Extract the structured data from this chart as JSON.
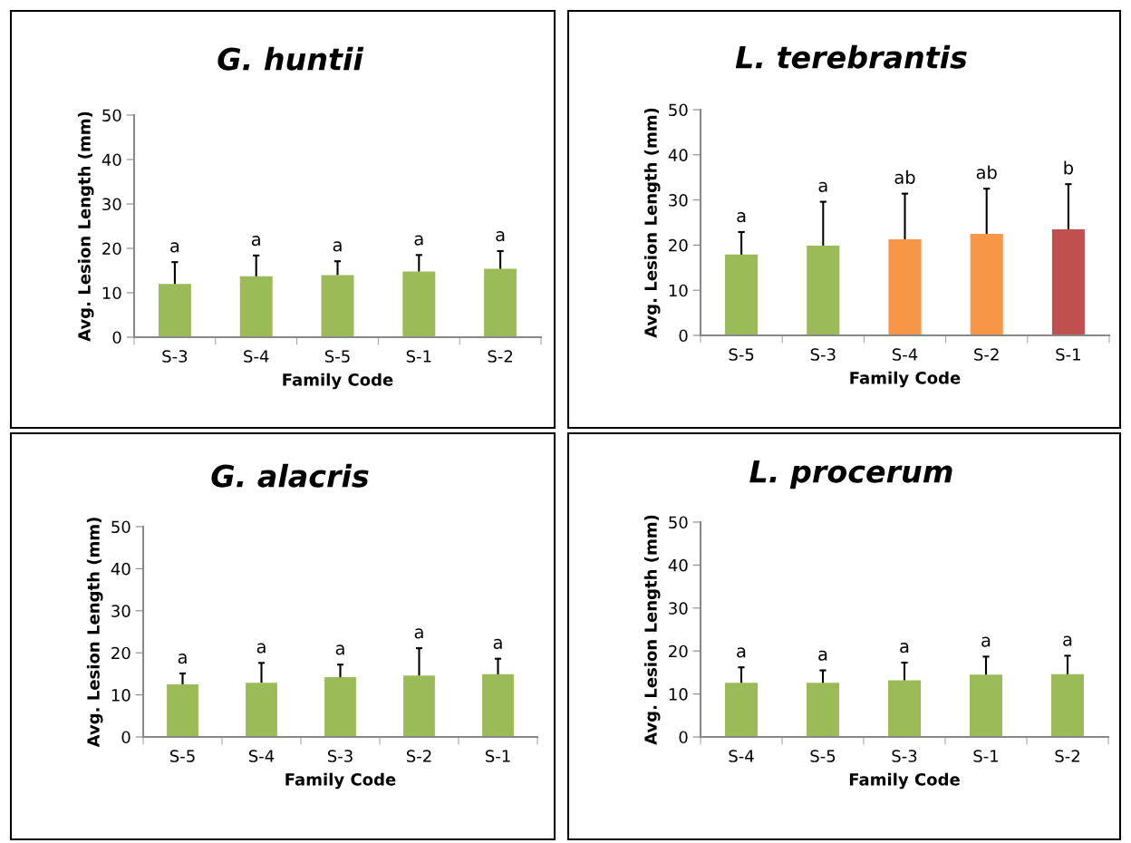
{
  "chart_data": [
    {
      "type": "bar",
      "title": "G. huntii",
      "xlabel": "Family Code",
      "ylabel": "Avg. Lesion Length (mm)",
      "categories": [
        "S-3",
        "S-4",
        "S-5",
        "S-1",
        "S-2"
      ],
      "values": [
        12.0,
        13.7,
        14.0,
        14.8,
        15.4
      ],
      "errors": [
        [
          12.0,
          16.9
        ],
        [
          13.7,
          18.4
        ],
        [
          14.0,
          17.1
        ],
        [
          14.8,
          18.5
        ],
        [
          15.4,
          19.4
        ]
      ],
      "colors": [
        "#9bbb59",
        "#9bbb59",
        "#9bbb59",
        "#9bbb59",
        "#9bbb59"
      ],
      "ylim": [
        0,
        50
      ],
      "yticks": [
        0,
        10,
        20,
        30,
        40,
        50
      ],
      "grid": false,
      "legend": false,
      "annotations": [
        {
          "text": "a",
          "x": "S-3",
          "y": 16.9
        },
        {
          "text": "a",
          "x": "S-4",
          "y": 18.4
        },
        {
          "text": "a",
          "x": "S-5",
          "y": 17.1
        },
        {
          "text": "a",
          "x": "S-1",
          "y": 18.5
        },
        {
          "text": "a",
          "x": "S-2",
          "y": 19.4
        }
      ]
    },
    {
      "type": "bar",
      "title": "L. terebrantis",
      "xlabel": "Family Code",
      "ylabel": "Avg. Lesion Length (mm)",
      "categories": [
        "S-5",
        "S-3",
        "S-4",
        "S-2",
        "S-1"
      ],
      "values": [
        17.9,
        19.9,
        21.3,
        22.5,
        23.5
      ],
      "errors": [
        [
          17.9,
          22.9
        ],
        [
          19.9,
          29.6
        ],
        [
          21.3,
          31.4
        ],
        [
          22.5,
          32.5
        ],
        [
          23.5,
          33.5
        ]
      ],
      "colors": [
        "#9bbb59",
        "#9bbb59",
        "#f79646",
        "#f79646",
        "#c0504d"
      ],
      "ylim": [
        0,
        50
      ],
      "yticks": [
        0,
        10,
        20,
        30,
        40,
        50
      ],
      "grid": false,
      "legend": false,
      "annotations": [
        {
          "text": "a",
          "x": "S-5",
          "y": 22.9
        },
        {
          "text": "a",
          "x": "S-3",
          "y": 29.6
        },
        {
          "text": "ab",
          "x": "S-4",
          "y": 31.4
        },
        {
          "text": "ab",
          "x": "S-2",
          "y": 32.5
        },
        {
          "text": "b",
          "x": "S-1",
          "y": 33.5
        }
      ]
    },
    {
      "type": "bar",
      "title": "G. alacris",
      "xlabel": "Family Code",
      "ylabel": "Avg. Lesion Length (mm)",
      "categories": [
        "S-5",
        "S-4",
        "S-3",
        "S-2",
        "S-1"
      ],
      "values": [
        12.5,
        12.9,
        14.2,
        14.6,
        14.9
      ],
      "errors": [
        [
          12.5,
          15.1
        ],
        [
          12.9,
          17.6
        ],
        [
          14.2,
          17.2
        ],
        [
          14.6,
          21.1
        ],
        [
          14.9,
          18.6
        ]
      ],
      "colors": [
        "#9bbb59",
        "#9bbb59",
        "#9bbb59",
        "#9bbb59",
        "#9bbb59"
      ],
      "ylim": [
        0,
        50
      ],
      "yticks": [
        0,
        10,
        20,
        30,
        40,
        50
      ],
      "grid": false,
      "legend": false,
      "annotations": [
        {
          "text": "a",
          "x": "S-5",
          "y": 15.1
        },
        {
          "text": "a",
          "x": "S-4",
          "y": 17.6
        },
        {
          "text": "a",
          "x": "S-3",
          "y": 17.2
        },
        {
          "text": "a",
          "x": "S-2",
          "y": 21.1
        },
        {
          "text": "a",
          "x": "S-1",
          "y": 18.6
        }
      ]
    },
    {
      "type": "bar",
      "title": "L. procerum",
      "xlabel": "Family Code",
      "ylabel": "Avg. Lesion Length (mm)",
      "categories": [
        "S-4",
        "S-5",
        "S-3",
        "S-1",
        "S-2"
      ],
      "values": [
        12.6,
        12.6,
        13.2,
        14.5,
        14.6
      ],
      "errors": [
        [
          12.6,
          16.2
        ],
        [
          12.6,
          15.5
        ],
        [
          13.2,
          17.3
        ],
        [
          14.5,
          18.7
        ],
        [
          14.6,
          18.9
        ]
      ],
      "colors": [
        "#9bbb59",
        "#9bbb59",
        "#9bbb59",
        "#9bbb59",
        "#9bbb59"
      ],
      "ylim": [
        0,
        50
      ],
      "yticks": [
        0,
        10,
        20,
        30,
        40,
        50
      ],
      "grid": false,
      "legend": false,
      "annotations": [
        {
          "text": "a",
          "x": "S-4",
          "y": 16.2
        },
        {
          "text": "a",
          "x": "S-5",
          "y": 15.5
        },
        {
          "text": "a",
          "x": "S-3",
          "y": 17.3
        },
        {
          "text": "a",
          "x": "S-1",
          "y": 18.7
        },
        {
          "text": "a",
          "x": "S-2",
          "y": 18.9
        }
      ]
    }
  ]
}
